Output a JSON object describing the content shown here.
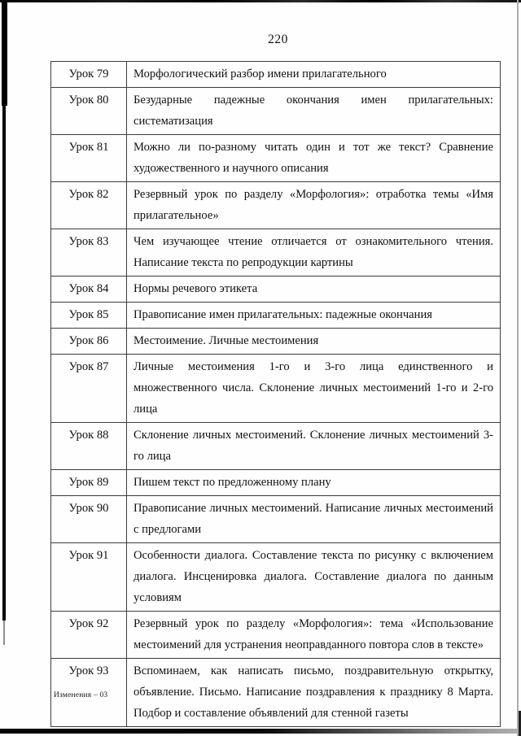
{
  "page": {
    "number": "220",
    "footer": "Изменения – 03"
  },
  "table": {
    "rows": [
      {
        "lesson": "Урок 79",
        "text": "Морфологический разбор имени прилагательного"
      },
      {
        "lesson": "Урок 80",
        "text": "Безударные падежные окончания имен прилагательных: систематизация"
      },
      {
        "lesson": "Урок 81",
        "text": "Можно ли по-разному читать один и тот же текст? Сравнение художественного и научного описания"
      },
      {
        "lesson": "Урок 82",
        "text": "Резервный урок по разделу «Морфология»: отработка темы «Имя прилагательное»"
      },
      {
        "lesson": "Урок 83",
        "text": "Чем изучающее чтение отличается от ознакомительного чтения. Написание текста по репродукции картины"
      },
      {
        "lesson": "Урок 84",
        "text": "Нормы речевого этикета"
      },
      {
        "lesson": "Урок 85",
        "text": "Правописание имен прилагательных: падежные окончания"
      },
      {
        "lesson": "Урок 86",
        "text": "Местоимение. Личные местоимения"
      },
      {
        "lesson": "Урок 87",
        "text": "Личные местоимения 1-го и 3-го лица единственного и множественного числа. Склонение личных местоимений 1-го и 2-го лица"
      },
      {
        "lesson": "Урок 88",
        "text": "Склонение личных местоимений. Склонение личных местоимений 3-го лица"
      },
      {
        "lesson": "Урок 89",
        "text": "Пишем текст по предложенному плану"
      },
      {
        "lesson": "Урок 90",
        "text": "Правописание личных местоимений. Написание личных местоимений с предлогами"
      },
      {
        "lesson": "Урок 91",
        "text": "Особенности диалога. Составление текста по рисунку с включением диалога. Инсценировка диалога. Составление диалога по данным условиям"
      },
      {
        "lesson": "Урок 92",
        "text": "Резервный урок по разделу «Морфология»: тема «Использование местоимений для устранения неоправданного повтора слов в тексте»"
      },
      {
        "lesson": "Урок 93",
        "text": "Вспоминаем, как написать письмо, поздравительную открытку, объявление. Письмо. Написание поздравления к празднику 8 Марта. Подбор и составление объявлений для стенной газеты"
      }
    ]
  }
}
